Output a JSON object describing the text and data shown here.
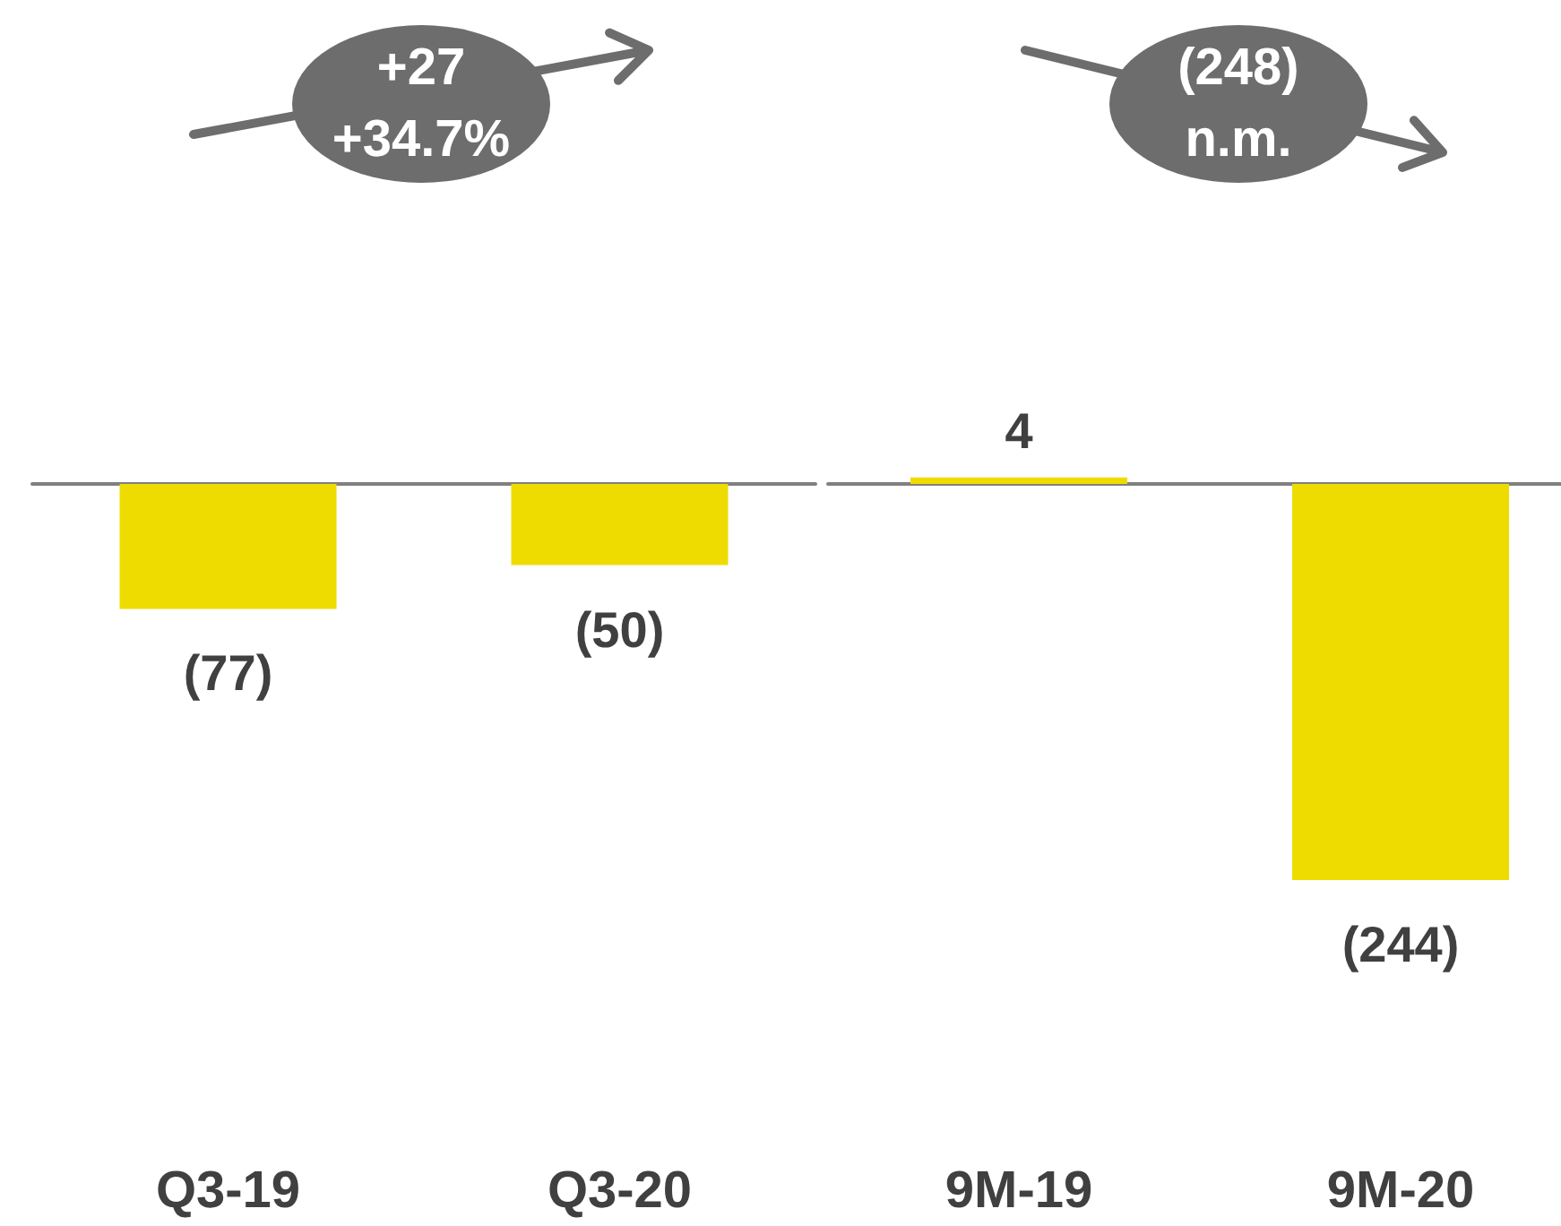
{
  "chart_data": [
    {
      "type": "bar",
      "categories": [
        "Q3-19",
        "Q3-20"
      ],
      "values": [
        -77,
        -50
      ],
      "color": "#eedc00",
      "value_labels": [
        "(77)",
        "(50)"
      ],
      "annotations": [
        "+27",
        "+34.7%"
      ]
    },
    {
      "type": "bar",
      "categories": [
        "9M-19",
        "9M-20"
      ],
      "values": [
        4,
        -244
      ],
      "color": "#eedc00",
      "value_labels": [
        "4",
        "(244)"
      ],
      "annotations": [
        "(248)",
        "n.m."
      ]
    }
  ]
}
